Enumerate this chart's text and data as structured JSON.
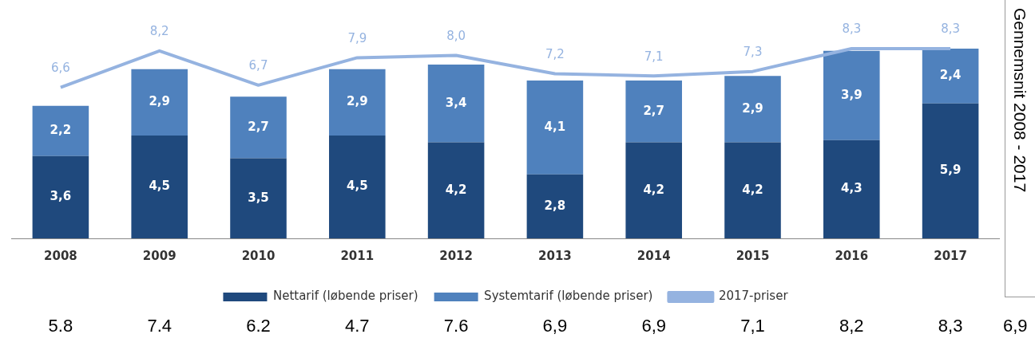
{
  "chart_data": {
    "type": "bar",
    "stacked": true,
    "legend": "bottom",
    "grid": false,
    "categories": [
      "2008",
      "2009",
      "2010",
      "2011",
      "2012",
      "2013",
      "2014",
      "2015",
      "2016",
      "2017"
    ],
    "series": [
      {
        "name": "Nettarif (løbende priser)",
        "color": "#1f497d",
        "values": [
          3.6,
          4.5,
          3.5,
          4.5,
          4.2,
          2.8,
          4.2,
          4.2,
          4.3,
          5.9
        ],
        "value_labels": [
          "3,6",
          "4,5",
          "3,5",
          "4,5",
          "4,2",
          "2,8",
          "4,2",
          "4,2",
          "4,3",
          "5,9"
        ]
      },
      {
        "name": "Systemtarif (løbende priser)",
        "color": "#4f81bd",
        "values": [
          2.2,
          2.9,
          2.7,
          2.9,
          3.4,
          4.1,
          2.7,
          2.9,
          3.9,
          2.4
        ],
        "value_labels": [
          "2,2",
          "2,9",
          "2,7",
          "2,9",
          "3,4",
          "4,1",
          "2,7",
          "2,9",
          "3,9",
          "2,4"
        ]
      },
      {
        "name": "2017-priser",
        "type": "line",
        "color": "#95b3e0",
        "marker": "none",
        "values": [
          6.6,
          8.2,
          6.7,
          7.9,
          8.0,
          7.2,
          7.1,
          7.3,
          8.3,
          8.3
        ],
        "value_labels": [
          "6,6",
          "8,2",
          "6,7",
          "7,9",
          "8,0",
          "7,2",
          "7,1",
          "7,3",
          "8,3",
          "8,3"
        ]
      }
    ],
    "annotations": [
      "5.8",
      "7.4",
      "6.2",
      "4.7",
      "7.6",
      "6,9",
      "6,9",
      "7,1",
      "8,2",
      "8,3",
      "Gennemsnit 2008 - 2017",
      "6,9"
    ]
  }
}
